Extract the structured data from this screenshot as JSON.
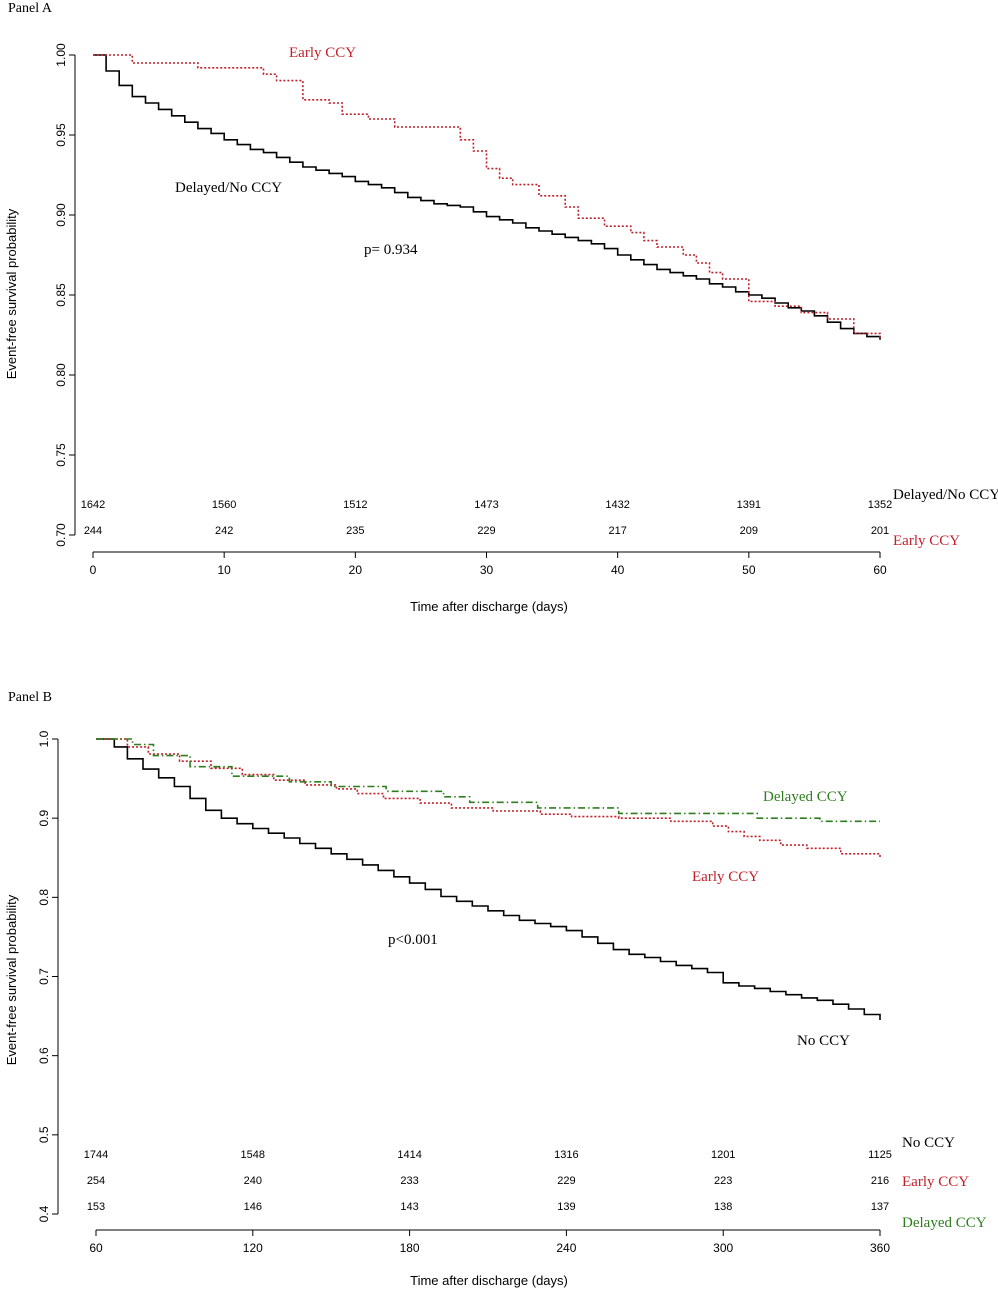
{
  "chart_data": [
    {
      "panel_label": "Panel A",
      "type": "line",
      "step": true,
      "xlabel": "Time after discharge (days)",
      "ylabel": "Event-free survival probability",
      "xlim": [
        0,
        60
      ],
      "ylim": [
        0.7,
        1.0
      ],
      "xticks": [
        "0",
        "10",
        "20",
        "30",
        "40",
        "50",
        "60"
      ],
      "yticks": [
        "0.70",
        "0.75",
        "0.80",
        "0.85",
        "0.90",
        "0.95",
        "1.00"
      ],
      "p_value": "p= 0.934",
      "series": [
        {
          "name": "Delayed/No CCY",
          "label": "Delayed/No CCY",
          "color": "#000000",
          "style": "solid",
          "at_risk": [
            "1642",
            "1560",
            "1512",
            "1473",
            "1432",
            "1391",
            "1352"
          ],
          "x": [
            0,
            1,
            2,
            3,
            4,
            5,
            6,
            7,
            8,
            9,
            10,
            11,
            12,
            13,
            14,
            15,
            16,
            17,
            18,
            19,
            20,
            21,
            22,
            23,
            24,
            25,
            26,
            27,
            28,
            29,
            30,
            31,
            32,
            33,
            34,
            35,
            36,
            37,
            38,
            39,
            40,
            41,
            42,
            43,
            44,
            45,
            46,
            47,
            48,
            49,
            50,
            51,
            52,
            53,
            54,
            55,
            56,
            57,
            58,
            59,
            60
          ],
          "values": [
            1.0,
            0.99,
            0.981,
            0.974,
            0.97,
            0.966,
            0.962,
            0.958,
            0.954,
            0.951,
            0.947,
            0.944,
            0.941,
            0.939,
            0.936,
            0.933,
            0.93,
            0.928,
            0.926,
            0.924,
            0.921,
            0.919,
            0.917,
            0.914,
            0.911,
            0.909,
            0.907,
            0.906,
            0.905,
            0.902,
            0.899,
            0.897,
            0.895,
            0.892,
            0.89,
            0.888,
            0.886,
            0.884,
            0.882,
            0.879,
            0.875,
            0.872,
            0.869,
            0.866,
            0.864,
            0.862,
            0.86,
            0.857,
            0.855,
            0.852,
            0.85,
            0.848,
            0.845,
            0.842,
            0.84,
            0.837,
            0.833,
            0.829,
            0.826,
            0.824,
            0.822
          ]
        },
        {
          "name": "Early CCY",
          "label": "Early CCY",
          "color": "#c0202a",
          "style": "dotted",
          "at_risk": [
            "244",
            "242",
            "235",
            "229",
            "217",
            "209",
            "201"
          ],
          "x": [
            0,
            3,
            8,
            13,
            14,
            16,
            18,
            19,
            21,
            23,
            28,
            29,
            30,
            31,
            32,
            34,
            36,
            37,
            39,
            41,
            42,
            43,
            45,
            46,
            47,
            48,
            50,
            52,
            54,
            56,
            58,
            60
          ],
          "values": [
            1.0,
            0.995,
            0.992,
            0.988,
            0.984,
            0.972,
            0.97,
            0.963,
            0.96,
            0.955,
            0.947,
            0.94,
            0.929,
            0.923,
            0.919,
            0.912,
            0.905,
            0.898,
            0.893,
            0.889,
            0.884,
            0.88,
            0.875,
            0.87,
            0.864,
            0.86,
            0.846,
            0.843,
            0.839,
            0.835,
            0.826,
            0.823
          ]
        }
      ]
    },
    {
      "panel_label": "Panel B",
      "type": "line",
      "step": true,
      "xlabel": "Time after discharge (days)",
      "ylabel": "Event-free survival probability",
      "xlim": [
        60,
        360
      ],
      "ylim": [
        0.4,
        1.0
      ],
      "xticks": [
        "60",
        "120",
        "180",
        "240",
        "300",
        "360"
      ],
      "yticks": [
        "0.4",
        "0.5",
        "0.6",
        "0.7",
        "0.8",
        "0.9",
        "1.0"
      ],
      "p_value": "p<0.001",
      "series": [
        {
          "name": "No CCY",
          "label": "No CCY",
          "color": "#000000",
          "style": "solid",
          "at_risk": [
            "1744",
            "1548",
            "1414",
            "1316",
            "1201",
            "1125"
          ],
          "x": [
            60,
            63,
            67,
            72,
            78,
            84,
            90,
            96,
            102,
            108,
            114,
            120,
            126,
            132,
            138,
            144,
            150,
            156,
            162,
            168,
            174,
            180,
            186,
            192,
            198,
            204,
            210,
            216,
            222,
            228,
            234,
            240,
            246,
            252,
            258,
            264,
            270,
            276,
            282,
            288,
            294,
            300,
            306,
            312,
            318,
            324,
            330,
            336,
            342,
            348,
            354,
            360
          ],
          "values": [
            1.0,
            1.0,
            0.99,
            0.975,
            0.962,
            0.951,
            0.94,
            0.925,
            0.91,
            0.9,
            0.893,
            0.887,
            0.881,
            0.875,
            0.868,
            0.862,
            0.855,
            0.848,
            0.841,
            0.834,
            0.826,
            0.818,
            0.81,
            0.801,
            0.795,
            0.789,
            0.783,
            0.777,
            0.771,
            0.767,
            0.763,
            0.758,
            0.75,
            0.742,
            0.734,
            0.728,
            0.724,
            0.719,
            0.714,
            0.71,
            0.705,
            0.692,
            0.688,
            0.685,
            0.681,
            0.677,
            0.673,
            0.67,
            0.665,
            0.659,
            0.652,
            0.645
          ]
        },
        {
          "name": "Early CCY",
          "label": "Early CCY",
          "color": "#c0202a",
          "style": "dotted",
          "at_risk": [
            "254",
            "240",
            "233",
            "229",
            "223",
            "216"
          ],
          "x": [
            60,
            66,
            72,
            80,
            92,
            104,
            116,
            128,
            140,
            152,
            160,
            170,
            184,
            196,
            212,
            230,
            242,
            260,
            280,
            296,
            302,
            308,
            314,
            322,
            332,
            345,
            360
          ],
          "values": [
            1.0,
            1.0,
            0.99,
            0.981,
            0.972,
            0.963,
            0.955,
            0.948,
            0.942,
            0.937,
            0.931,
            0.925,
            0.919,
            0.913,
            0.909,
            0.905,
            0.902,
            0.9,
            0.896,
            0.89,
            0.883,
            0.877,
            0.872,
            0.866,
            0.862,
            0.855,
            0.85
          ]
        },
        {
          "name": "Delayed CCY",
          "label": "Delayed CCY",
          "color": "#2e7d1f",
          "style": "dash-dot",
          "at_risk": [
            "153",
            "146",
            "143",
            "139",
            "138",
            "137"
          ],
          "x": [
            60,
            66,
            74,
            82,
            96,
            112,
            134,
            150,
            171,
            193,
            203,
            229,
            260,
            313,
            337,
            360
          ],
          "values": [
            1.0,
            1.0,
            0.993,
            0.979,
            0.965,
            0.953,
            0.946,
            0.94,
            0.934,
            0.927,
            0.92,
            0.913,
            0.906,
            0.9,
            0.896,
            0.896
          ]
        }
      ]
    }
  ]
}
